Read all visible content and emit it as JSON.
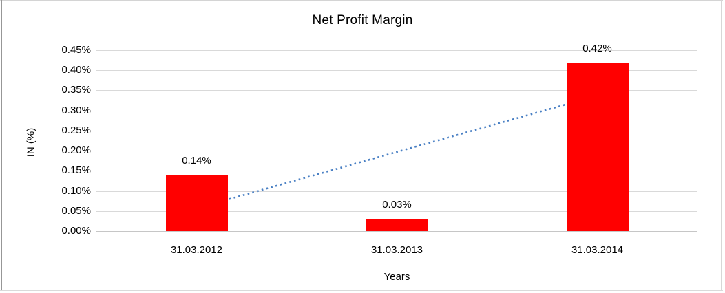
{
  "chart_data": {
    "type": "bar",
    "title": "Net Profit Margin",
    "xlabel": "Years",
    "ylabel": "IN (%)",
    "categories": [
      "31.03.2012",
      "31.03.2013",
      "31.03.2014"
    ],
    "values": [
      0.14,
      0.03,
      0.42
    ],
    "data_labels": [
      "0.14%",
      "0.03%",
      "0.42%"
    ],
    "y_ticks": [
      "0.45%",
      "0.40%",
      "0.35%",
      "0.30%",
      "0.25%",
      "0.20%",
      "0.15%",
      "0.10%",
      "0.05%",
      "0.00%"
    ],
    "ylim": [
      0,
      0.45
    ],
    "grid": true,
    "legend": "none",
    "bar_color": "#ff0000",
    "gridline_color": "#d9d9d9",
    "trendline": {
      "type": "linear",
      "style": "dotted",
      "color": "#4a80c4",
      "start_value": 0.057,
      "end_value": 0.337
    }
  }
}
